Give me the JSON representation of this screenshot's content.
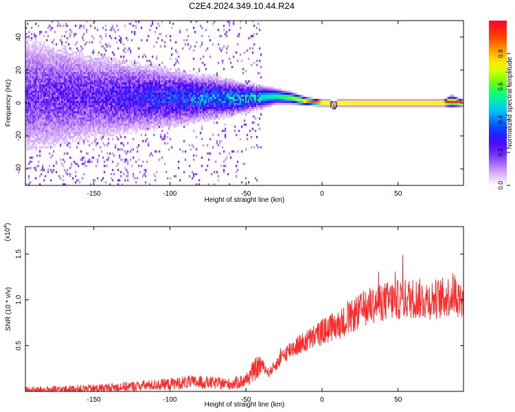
{
  "page_title": "C2E4.2024.349.10.44.R24",
  "colors": {
    "snr_line": "#ff2a2a",
    "axis": "#000000",
    "colormap": [
      "#ffffff",
      "#cc99ff",
      "#7a33ff",
      "#3b00ff",
      "#0055ff",
      "#00c8ff",
      "#00ff88",
      "#7dff00",
      "#ffff00",
      "#ffa000",
      "#ff3a00",
      "#ff0033"
    ]
  },
  "chart_data": [
    {
      "type": "heatmap",
      "title": "C2E4.2024.349.10.44.R24",
      "xlabel": "Height of straight line (km)",
      "ylabel": "Frequency (Hz)",
      "xlim": [
        -195,
        93
      ],
      "ylim": [
        -50,
        50
      ],
      "x_ticks": [
        -150,
        -100,
        -50,
        0,
        50
      ],
      "y_ticks": [
        -40,
        -20,
        0,
        20,
        40
      ],
      "colorbar": {
        "label": "Normalized spectral amplitude",
        "range": [
          0,
          1
        ],
        "ticks": [
          "0.0",
          "0.2",
          "0.4",
          "0.6",
          "0.8"
        ]
      },
      "ridge_profile": {
        "x": [
          -195,
          -150,
          -100,
          -50,
          -30,
          -20,
          -10,
          0,
          5,
          8,
          10,
          20,
          40,
          60,
          80,
          85,
          93
        ],
        "center_hz": [
          5,
          4,
          3,
          3,
          4,
          3,
          1,
          0,
          0,
          -2,
          0,
          0,
          0,
          0,
          0,
          1,
          0
        ],
        "half_width_hz": [
          35,
          25,
          16,
          8,
          4,
          3,
          2,
          1.5,
          1.5,
          2,
          1.5,
          1.5,
          1.5,
          1.5,
          1.5,
          3,
          1.5
        ],
        "peak_amplitude": [
          0.18,
          0.2,
          0.3,
          0.42,
          0.55,
          0.65,
          0.85,
          0.95,
          0.95,
          0.9,
          0.95,
          0.97,
          0.97,
          0.97,
          0.97,
          0.93,
          0.97
        ]
      }
    },
    {
      "type": "line",
      "xlabel": "Height of straight line (km)",
      "ylabel": "SNR (10 * v/v)",
      "y_multiplier_label": "(x10",
      "y_multiplier_exp": "4",
      "y_multiplier_close": ")",
      "xlim": [
        -195,
        93
      ],
      "ylim": [
        0,
        1.8
      ],
      "x_ticks": [
        -150,
        -100,
        -50,
        0,
        50
      ],
      "y_ticks": [
        "0.5",
        "1.0",
        "1.5"
      ],
      "series": [
        {
          "x": [
            -195,
            -170,
            -150,
            -140,
            -130,
            -120,
            -100,
            -90,
            -80,
            -70,
            -60,
            -50,
            -45,
            -40,
            -35,
            -30,
            -25,
            -20,
            -10,
            0,
            10,
            20,
            30,
            40,
            50,
            60,
            70,
            80,
            85,
            87,
            90,
            93
          ],
          "y": [
            0.01,
            0.02,
            0.03,
            0.04,
            0.05,
            0.06,
            0.08,
            0.1,
            0.1,
            0.09,
            0.08,
            0.12,
            0.22,
            0.3,
            0.2,
            0.3,
            0.4,
            0.47,
            0.55,
            0.65,
            0.72,
            0.82,
            0.93,
            0.98,
            1.0,
            1.02,
            1.0,
            1.02,
            1.05,
            1.08,
            1.02,
            1.0
          ]
        }
      ]
    }
  ]
}
